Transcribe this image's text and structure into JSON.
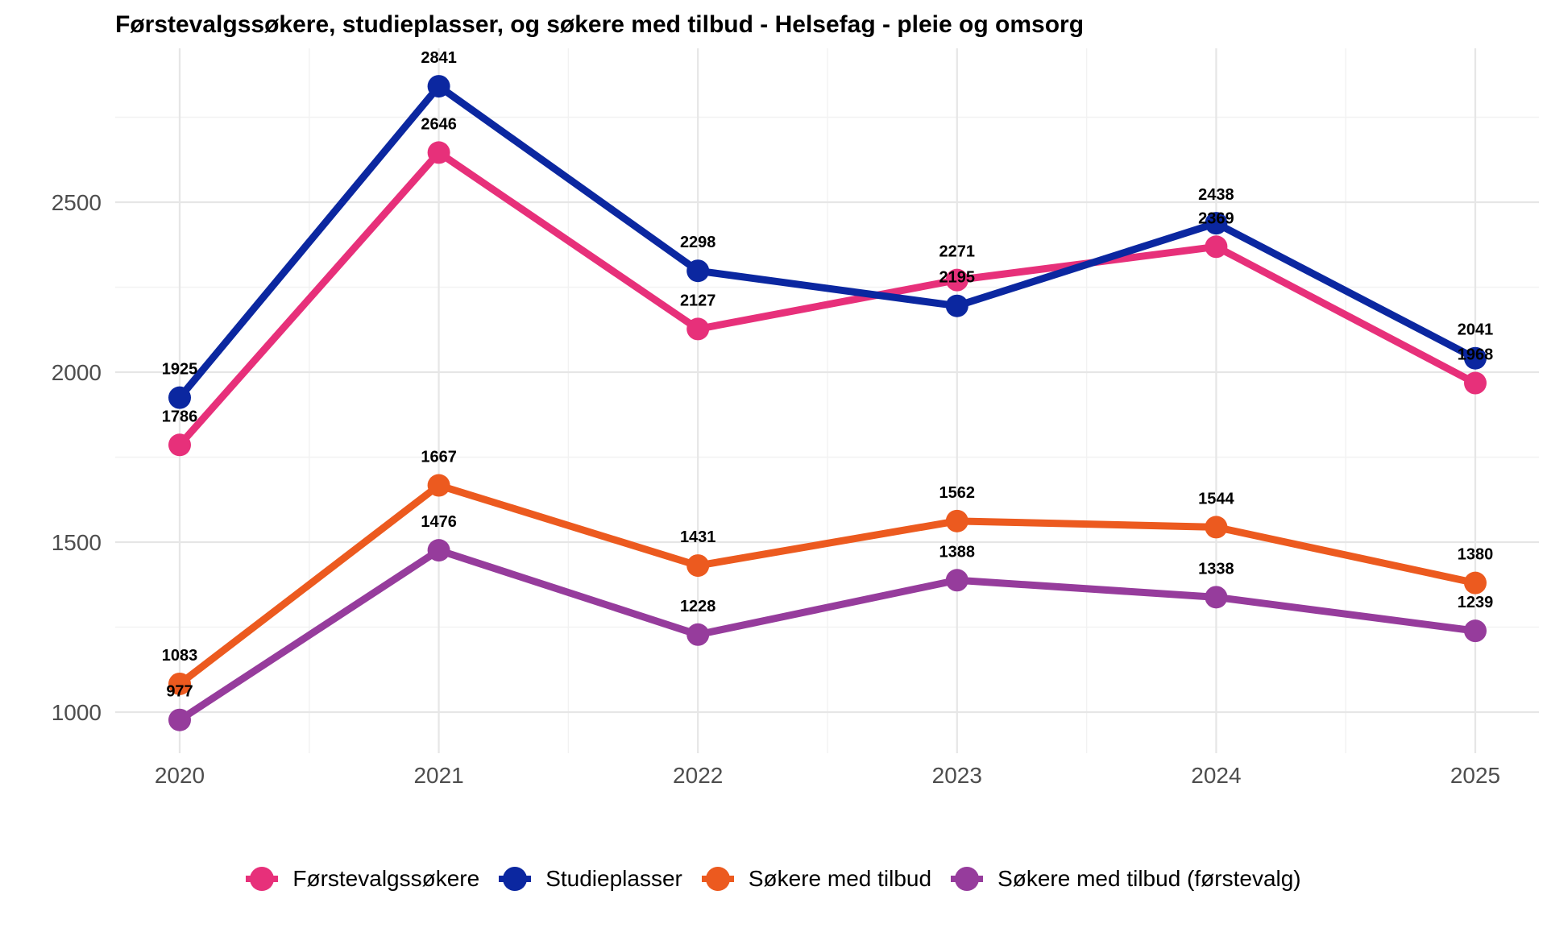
{
  "chart_data": {
    "type": "line",
    "title": "Førstevalgssøkere, studieplasser, og søkere med tilbud - Helsefag - pleie og omsorg",
    "xlabel": "",
    "ylabel": "",
    "x": [
      "2020",
      "2021",
      "2022",
      "2023",
      "2024",
      "2025"
    ],
    "ylim": [
      890,
      2990
    ],
    "yticks": [
      1000,
      1500,
      2000,
      2500
    ],
    "grid": true,
    "legend_position": "bottom",
    "series": [
      {
        "name": "Førstevalgssøkere",
        "color": "#E7307A",
        "values": [
          1786,
          2646,
          2127,
          2271,
          2369,
          1968
        ]
      },
      {
        "name": "Studieplasser",
        "color": "#0B27A0",
        "values": [
          1925,
          2841,
          2298,
          2195,
          2438,
          2041
        ]
      },
      {
        "name": "Søkere med tilbud",
        "color": "#EC5A1F",
        "values": [
          1083,
          1667,
          1431,
          1562,
          1544,
          1380
        ]
      },
      {
        "name": "Søkere med tilbud (førstevalg)",
        "color": "#963C9C",
        "values": [
          977,
          1476,
          1228,
          1388,
          1338,
          1239
        ]
      }
    ]
  }
}
